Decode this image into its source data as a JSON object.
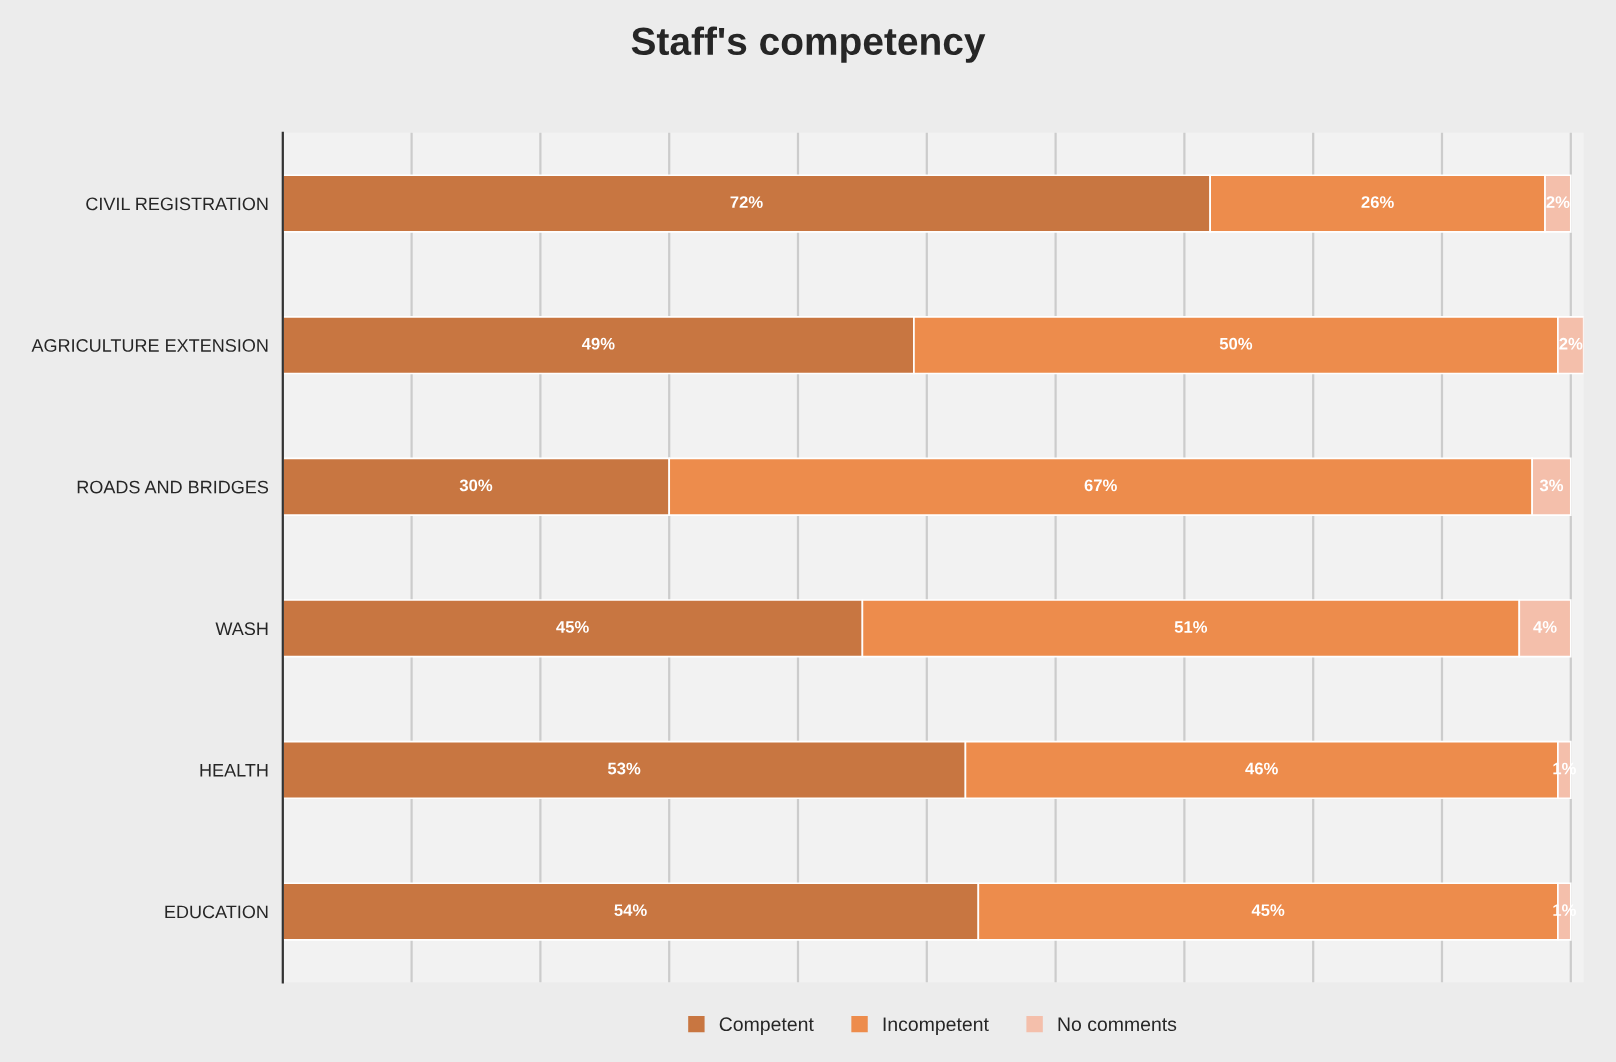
{
  "chart_data": {
    "type": "bar",
    "orientation": "horizontal",
    "stacked": true,
    "title": "Staff's competency",
    "categories": [
      "CIVIL REGISTRATION",
      "AGRICULTURE EXTENSION",
      "ROADS AND BRIDGES",
      "WASH",
      "HEALTH",
      "EDUCATION"
    ],
    "series": [
      {
        "name": "Competent",
        "color": "#c87641",
        "values": [
          72,
          49,
          30,
          45,
          53,
          54
        ],
        "value_labels": [
          "72%",
          "49%",
          "30%",
          "45%",
          "53%",
          "54%"
        ]
      },
      {
        "name": "Incompetent",
        "color": "#ed8c4c",
        "values": [
          26,
          50,
          67,
          51,
          46,
          45
        ],
        "value_labels": [
          "26%",
          "50%",
          "67%",
          "51%",
          "46%",
          "45%"
        ]
      },
      {
        "name": "No comments",
        "color": "#f4bfab",
        "values": [
          2,
          2,
          3,
          4,
          1,
          1
        ],
        "value_labels": [
          "2%",
          "2%",
          "3%",
          "4%",
          "1%",
          "1%"
        ]
      }
    ],
    "xlim": [
      0,
      101
    ],
    "xticks": [
      {
        "value": 0,
        "label": null
      },
      {
        "value": 10,
        "label": null
      },
      {
        "value": 20,
        "label": null
      },
      {
        "value": 30,
        "label": null
      },
      {
        "value": 40,
        "label": null
      },
      {
        "value": 50,
        "label": null
      },
      {
        "value": 60,
        "label": null
      },
      {
        "value": 70,
        "label": null
      },
      {
        "value": 80,
        "label": null
      },
      {
        "value": 90,
        "label": null
      },
      {
        "value": 100,
        "label": null
      }
    ],
    "tick_labels": "y",
    "grid": "x",
    "legend": "bottom"
  }
}
